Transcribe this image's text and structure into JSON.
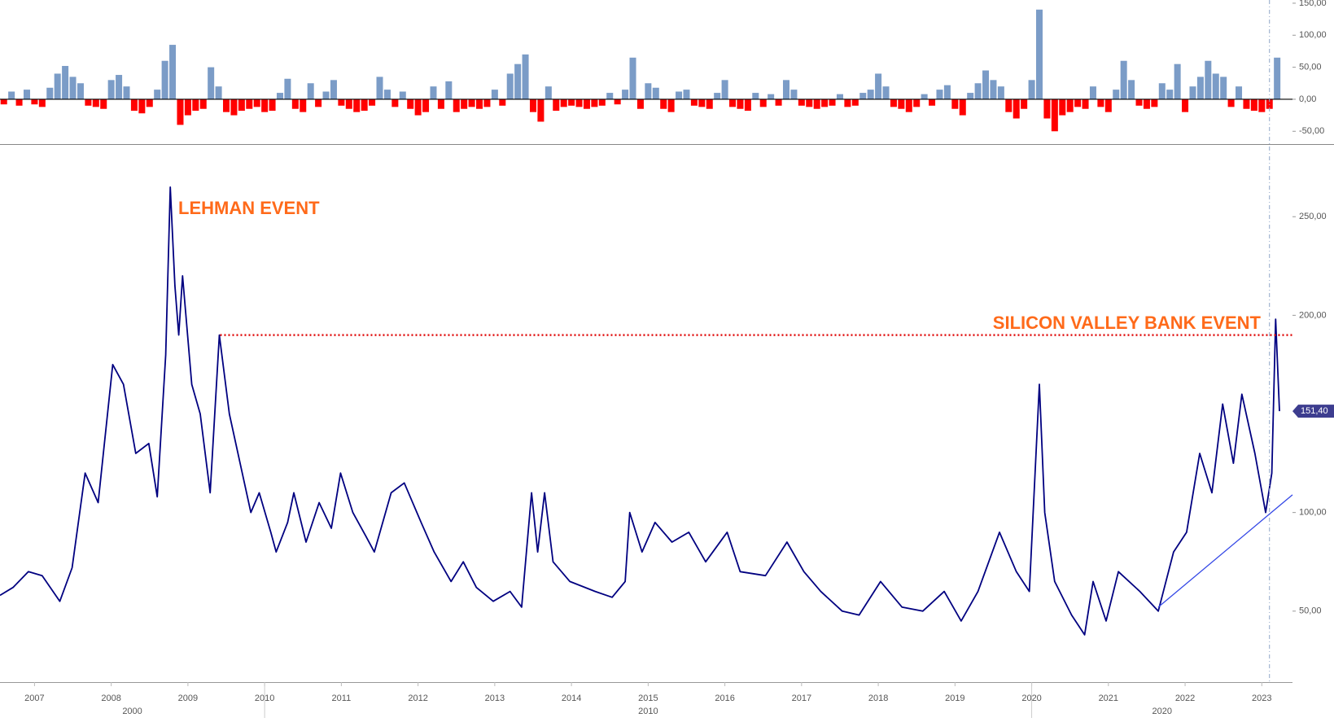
{
  "chart_data": [
    {
      "type": "bar",
      "positive_color": "#7b9cc7",
      "negative_color": "#ff0000",
      "ylim": [
        -70,
        155
      ],
      "yticks": [
        {
          "value": -50,
          "label": "-50,00"
        },
        {
          "value": 0,
          "label": "0,00"
        },
        {
          "value": 50,
          "label": "50,00"
        },
        {
          "value": 100,
          "label": "100,00"
        },
        {
          "value": 150,
          "label": "150,00"
        }
      ],
      "x": [
        2006.6,
        2006.7,
        2006.8,
        2006.9,
        2007,
        2007.1,
        2007.2,
        2007.3,
        2007.4,
        2007.5,
        2007.6,
        2007.7,
        2007.8,
        2007.9,
        2008,
        2008.1,
        2008.2,
        2008.3,
        2008.4,
        2008.5,
        2008.6,
        2008.7,
        2008.8,
        2008.9,
        2009,
        2009.1,
        2009.2,
        2009.3,
        2009.4,
        2009.5,
        2009.6,
        2009.7,
        2009.8,
        2009.9,
        2010,
        2010.1,
        2010.2,
        2010.3,
        2010.4,
        2010.5,
        2010.6,
        2010.7,
        2010.8,
        2010.9,
        2011,
        2011.1,
        2011.2,
        2011.3,
        2011.4,
        2011.5,
        2011.6,
        2011.7,
        2011.8,
        2011.9,
        2012,
        2012.1,
        2012.2,
        2012.3,
        2012.4,
        2012.5,
        2012.6,
        2012.7,
        2012.8,
        2012.9,
        2013,
        2013.1,
        2013.2,
        2013.3,
        2013.4,
        2013.5,
        2013.6,
        2013.7,
        2013.8,
        2013.9,
        2014,
        2014.1,
        2014.2,
        2014.3,
        2014.4,
        2014.5,
        2014.6,
        2014.7,
        2014.8,
        2014.9,
        2015,
        2015.1,
        2015.2,
        2015.3,
        2015.4,
        2015.5,
        2015.6,
        2015.7,
        2015.8,
        2015.9,
        2016,
        2016.1,
        2016.2,
        2016.3,
        2016.4,
        2016.5,
        2016.6,
        2016.7,
        2016.8,
        2016.9,
        2017,
        2017.1,
        2017.2,
        2017.3,
        2017.4,
        2017.5,
        2017.6,
        2017.7,
        2017.8,
        2017.9,
        2018,
        2018.1,
        2018.2,
        2018.3,
        2018.4,
        2018.5,
        2018.6,
        2018.7,
        2018.8,
        2018.9,
        2019,
        2019.1,
        2019.2,
        2019.3,
        2019.4,
        2019.5,
        2019.6,
        2019.7,
        2019.8,
        2019.9,
        2020,
        2020.1,
        2020.2,
        2020.3,
        2020.4,
        2020.5,
        2020.6,
        2020.7,
        2020.8,
        2020.9,
        2021,
        2021.1,
        2021.2,
        2021.3,
        2021.4,
        2021.5,
        2021.6,
        2021.7,
        2021.8,
        2021.9,
        2022,
        2022.1,
        2022.2,
        2022.3,
        2022.4,
        2022.5,
        2022.6,
        2022.7,
        2022.8,
        2022.9,
        2023,
        2023.1,
        2023.2
      ],
      "values": [
        -8,
        12,
        -10,
        15,
        -8,
        -12,
        18,
        40,
        52,
        35,
        25,
        -10,
        -12,
        -15,
        30,
        38,
        20,
        -18,
        -22,
        -12,
        15,
        60,
        85,
        -40,
        -25,
        -18,
        -15,
        50,
        20,
        -20,
        -25,
        -18,
        -15,
        -12,
        -20,
        -18,
        10,
        32,
        -15,
        -20,
        25,
        -12,
        12,
        30,
        -10,
        -15,
        -20,
        -18,
        -10,
        35,
        15,
        -12,
        12,
        -15,
        -25,
        -20,
        20,
        -15,
        28,
        -20,
        -15,
        -12,
        -15,
        -12,
        15,
        -10,
        40,
        55,
        70,
        -20,
        -35,
        20,
        -18,
        -12,
        -10,
        -12,
        -15,
        -12,
        -10,
        10,
        -8,
        15,
        65,
        -15,
        25,
        18,
        -15,
        -20,
        12,
        15,
        -10,
        -12,
        -15,
        10,
        30,
        -12,
        -15,
        -18,
        10,
        -12,
        8,
        -10,
        30,
        15,
        -10,
        -12,
        -15,
        -12,
        -10,
        8,
        -12,
        -10,
        10,
        15,
        40,
        20,
        -12,
        -15,
        -20,
        -12,
        8,
        -10,
        15,
        22,
        -15,
        -25,
        10,
        25,
        45,
        30,
        20,
        -20,
        -30,
        -15,
        30,
        140,
        -30,
        -50,
        -25,
        -20,
        -12,
        -15,
        20,
        -12,
        -20,
        15,
        60,
        30,
        -10,
        -15,
        -12,
        25,
        15,
        55,
        -20,
        20,
        35,
        60,
        40,
        35,
        -12,
        20,
        -15,
        -18,
        -20,
        -15,
        65
      ]
    },
    {
      "type": "line",
      "color": "#000080",
      "xlim": [
        2006.55,
        2023.4
      ],
      "xticks": [
        2007,
        2008,
        2009,
        2010,
        2011,
        2012,
        2013,
        2014,
        2015,
        2016,
        2017,
        2018,
        2019,
        2020,
        2021,
        2022,
        2023
      ],
      "x_groups": [
        "2000",
        "2010",
        "2020"
      ],
      "ylim": [
        14,
        286
      ],
      "yticks": [
        {
          "value": 50,
          "label": "50,00"
        },
        {
          "value": 100,
          "label": "100,00"
        },
        {
          "value": 200,
          "label": "200,00"
        },
        {
          "value": 250,
          "label": "250,00"
        }
      ],
      "x": [
        2006.55,
        2006.72,
        2006.92,
        2007.1,
        2007.33,
        2007.49,
        2007.66,
        2007.83,
        2008.02,
        2008.16,
        2008.32,
        2008.49,
        2008.6,
        2008.71,
        2008.77,
        2008.83,
        2008.88,
        2008.93,
        2009.05,
        2009.16,
        2009.29,
        2009.41,
        2009.54,
        2009.68,
        2009.82,
        2009.93,
        2010.08,
        2010.15,
        2010.3,
        2010.38,
        2010.54,
        2010.71,
        2010.87,
        2010.99,
        2011.15,
        2011.32,
        2011.43,
        2011.65,
        2011.82,
        2012.04,
        2012.21,
        2012.43,
        2012.59,
        2012.76,
        2012.98,
        2013.2,
        2013.35,
        2013.48,
        2013.56,
        2013.65,
        2013.76,
        2013.98,
        2014.31,
        2014.53,
        2014.7,
        2014.76,
        2014.92,
        2015.09,
        2015.31,
        2015.53,
        2015.75,
        2016.03,
        2016.2,
        2016.53,
        2016.81,
        2017.03,
        2017.25,
        2017.53,
        2017.75,
        2018.03,
        2018.31,
        2018.58,
        2018.86,
        2019.08,
        2019.3,
        2019.58,
        2019.8,
        2019.97,
        2020.1,
        2020.17,
        2020.3,
        2020.52,
        2020.69,
        2020.8,
        2020.97,
        2021.13,
        2021.41,
        2021.65,
        2021.85,
        2022.02,
        2022.19,
        2022.35,
        2022.49,
        2022.63,
        2022.74,
        2022.91,
        2023.05,
        2023.13,
        2023.18,
        2023.23
      ],
      "values": [
        58,
        62,
        70,
        68,
        55,
        72,
        120,
        105,
        175,
        165,
        130,
        135,
        108,
        180,
        265,
        215,
        190,
        220,
        165,
        150,
        110,
        190,
        150,
        125,
        100,
        110,
        90,
        80,
        95,
        110,
        85,
        105,
        92,
        120,
        100,
        88,
        80,
        110,
        115,
        95,
        80,
        65,
        75,
        62,
        55,
        60,
        52,
        110,
        80,
        110,
        75,
        65,
        60,
        57,
        65,
        100,
        80,
        95,
        85,
        90,
        75,
        90,
        70,
        68,
        85,
        70,
        60,
        50,
        48,
        65,
        52,
        50,
        60,
        45,
        60,
        90,
        70,
        60,
        165,
        100,
        65,
        48,
        38,
        65,
        45,
        70,
        60,
        50,
        80,
        90,
        130,
        110,
        155,
        125,
        160,
        130,
        100,
        120,
        198,
        151.4
      ],
      "last_label": {
        "value": 151.4,
        "label": "151,40"
      },
      "reference_line": {
        "value": 190,
        "x_start": 2009.42,
        "color": "#e01010"
      },
      "trendline": {
        "x": [
          2021.65,
          2023.4
        ],
        "y": [
          52,
          109
        ],
        "color": "#3347e6"
      },
      "marker_x": 2023.1,
      "annotations": [
        "LEHMAN EVENT",
        "SILICON VALLEY BANK EVENT"
      ]
    }
  ]
}
